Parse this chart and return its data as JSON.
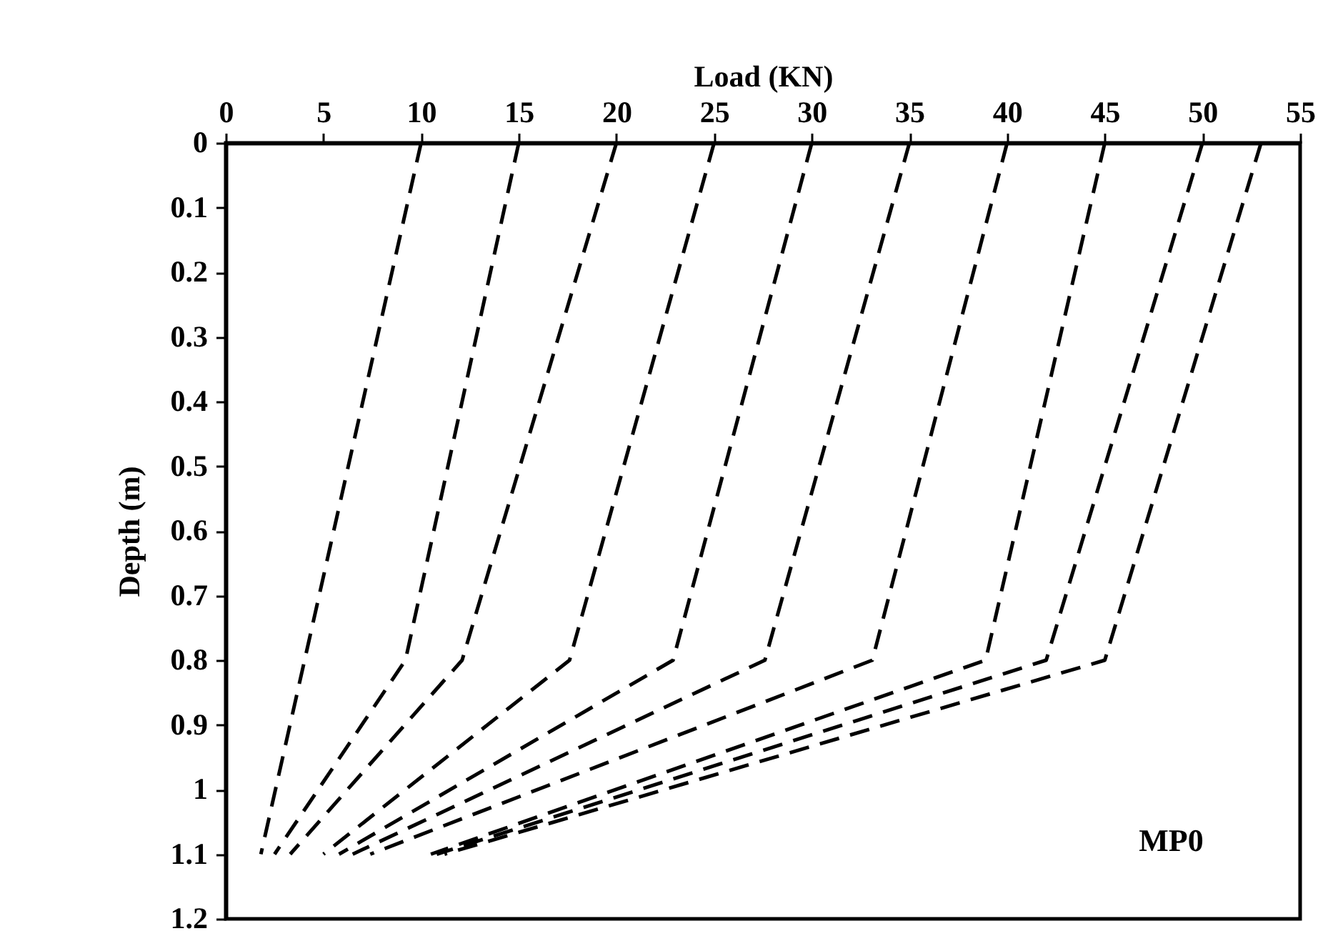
{
  "chart_data": {
    "type": "line",
    "xlabel": "Load (KN)",
    "ylabel": "Depth (m)",
    "xlim": [
      0,
      55
    ],
    "xticks": [
      0,
      5,
      10,
      15,
      20,
      25,
      30,
      35,
      40,
      45,
      50,
      55
    ],
    "ylim": [
      1.2,
      0
    ],
    "yticks": [
      0,
      0.1,
      0.2,
      0.3,
      0.4,
      0.5,
      0.6,
      0.7,
      0.8,
      0.9,
      1,
      1.1,
      1.2
    ],
    "grid": false,
    "line_style": "dashed",
    "annotations": [
      "MP0"
    ],
    "series": [
      {
        "color": "#000000",
        "x": [
          10,
          1.8
        ],
        "values": [
          0,
          1.1
        ]
      },
      {
        "color": "#000000",
        "x": [
          15,
          9.2,
          2.5
        ],
        "values": [
          0,
          0.8,
          1.1
        ]
      },
      {
        "color": "#000000",
        "x": [
          20,
          12.1,
          3.3
        ],
        "values": [
          0,
          0.8,
          1.1
        ]
      },
      {
        "color": "#000000",
        "x": [
          25,
          17.6,
          5
        ],
        "values": [
          0,
          0.8,
          1.1
        ]
      },
      {
        "color": "#000000",
        "x": [
          30,
          22.9,
          5.8
        ],
        "values": [
          0,
          0.8,
          1.1
        ]
      },
      {
        "color": "#000000",
        "x": [
          35,
          27.6,
          6.5
        ],
        "values": [
          0,
          0.8,
          1.1
        ]
      },
      {
        "color": "#000000",
        "x": [
          40,
          33.1,
          7.4
        ],
        "values": [
          0,
          0.8,
          1.1
        ]
      },
      {
        "color": "#000000",
        "x": [
          45,
          38.9,
          10.5
        ],
        "values": [
          0,
          0.8,
          1.1
        ]
      },
      {
        "color": "#000000",
        "x": [
          50,
          42,
          10.8
        ],
        "values": [
          0,
          0.8,
          1.1
        ]
      },
      {
        "color": "#000000",
        "x": [
          53,
          45,
          11.2
        ],
        "values": [
          0,
          0.8,
          1.1
        ]
      }
    ]
  }
}
